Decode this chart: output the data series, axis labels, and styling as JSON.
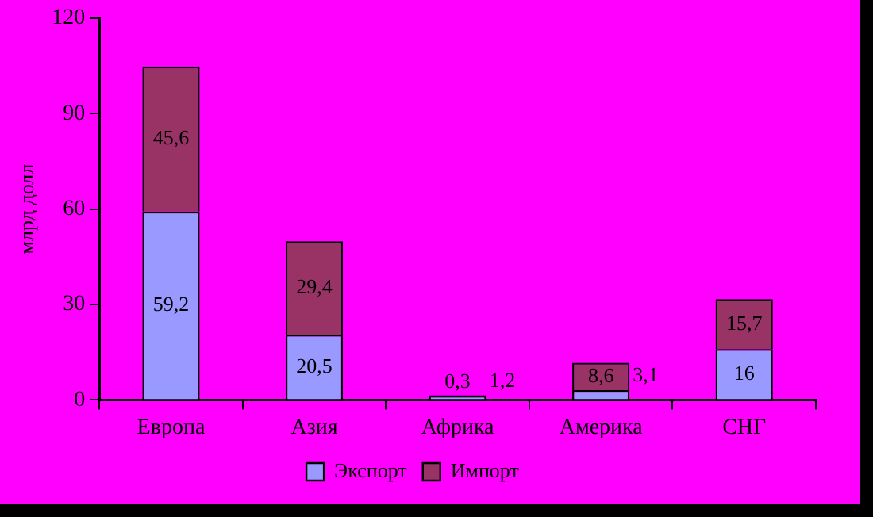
{
  "chart_data": {
    "type": "bar",
    "stacked": true,
    "ylabel": "млрд долл",
    "categories": [
      "Европа",
      "Азия",
      "Африка",
      "Америка",
      "СНГ"
    ],
    "series": [
      {
        "name": "Экспорт",
        "color": "#9999ff",
        "values": [
          59.2,
          20.5,
          1.2,
          3.1,
          16
        ],
        "value_labels": [
          "59,2",
          "20,5",
          "1,2",
          "3,1",
          "16"
        ]
      },
      {
        "name": "Импорт",
        "color": "#993366",
        "values": [
          45.6,
          29.4,
          0.3,
          8.6,
          15.7
        ],
        "value_labels": [
          "45,6",
          "29,4",
          "0,3",
          "8,6",
          "15,7"
        ]
      }
    ],
    "ylim": [
      0,
      120
    ],
    "yticks": [
      0,
      30,
      60,
      90,
      120
    ],
    "grid": false,
    "legend": "bottom"
  }
}
